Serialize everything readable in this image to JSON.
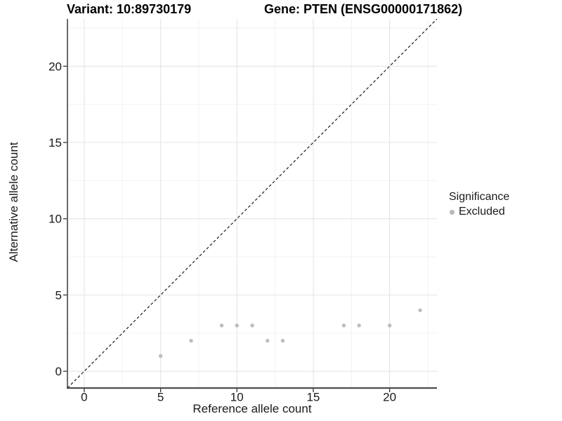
{
  "chart_data": {
    "type": "scatter",
    "title_left": "Variant: 10:89730179",
    "title_right": "Gene: PTEN (ENSG00000171862)",
    "xlabel": "Reference allele count",
    "ylabel": "Alternative allele count",
    "xlim": [
      -1.1,
      23.1
    ],
    "ylim": [
      -1.1,
      23.1
    ],
    "x_ticks": [
      0,
      5,
      10,
      15,
      20
    ],
    "y_ticks": [
      0,
      5,
      10,
      15,
      20
    ],
    "x_minor_ticks": [
      2.5,
      7.5,
      12.5,
      17.5,
      22.5
    ],
    "y_minor_ticks": [
      2.5,
      7.5,
      12.5,
      17.5,
      22.5
    ],
    "grid": true,
    "reference_line": {
      "type": "identity",
      "equation": "y = x",
      "style": "dashed",
      "color": "#1a1a1a"
    },
    "series": [
      {
        "name": "Excluded",
        "points": [
          [
            5,
            1
          ],
          [
            7,
            2
          ],
          [
            9,
            3
          ],
          [
            10,
            3
          ],
          [
            11,
            3
          ],
          [
            12,
            2
          ],
          [
            13,
            2
          ],
          [
            17,
            3
          ],
          [
            18,
            3
          ],
          [
            20,
            3
          ],
          [
            22,
            4
          ]
        ]
      }
    ],
    "legend": {
      "title": "Significance",
      "position": "right",
      "items": [
        {
          "label": "Excluded",
          "color": "#b9b9b9"
        }
      ]
    },
    "colors": {
      "point": "#bdbdbd",
      "grid_major": "#e7e7e7",
      "grid_minor": "#f2f2f2",
      "axis_line": "#404040",
      "tick": "#333333",
      "text": "#1a1a1a"
    }
  }
}
